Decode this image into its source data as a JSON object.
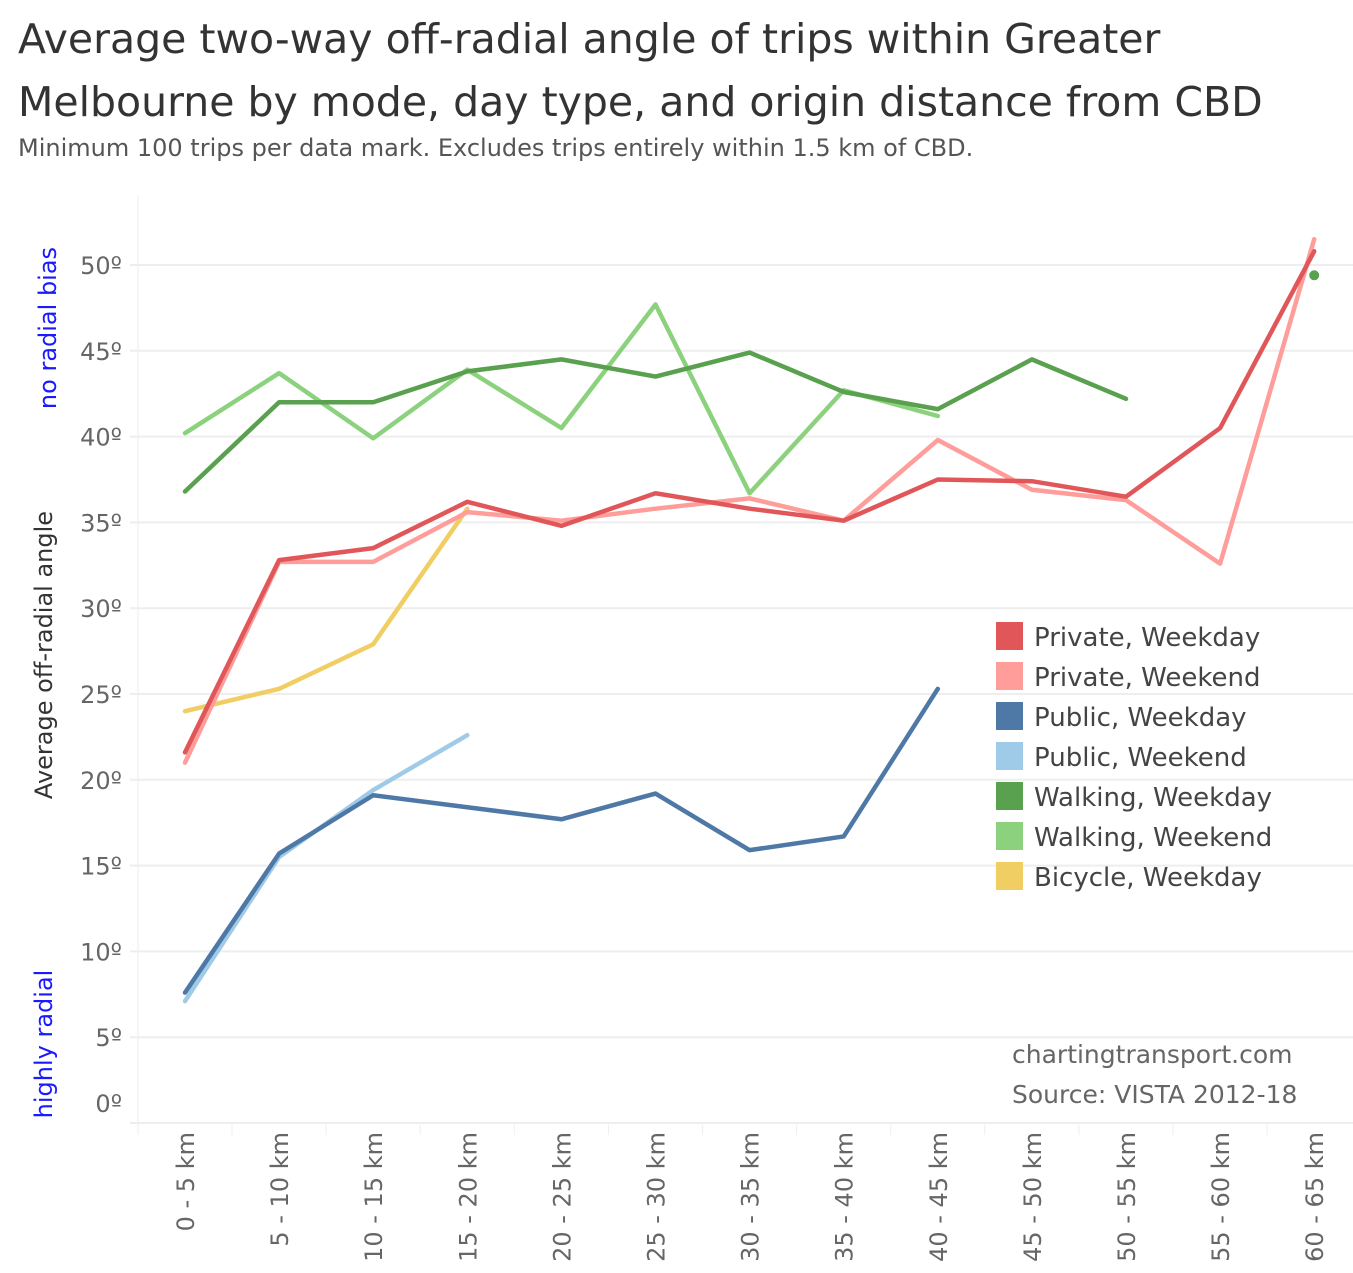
{
  "chart_data": {
    "type": "line",
    "title": "Average two-way off-radial angle of trips within Greater Melbourne by mode, day type, and origin distance from CBD",
    "subtitle": "Minimum 100 trips per data mark. Excludes trips entirely within 1.5 km of CBD.",
    "ylabel": "Average off-radial angle",
    "xlabel": "",
    "ylim": [
      0,
      52
    ],
    "yticks": [
      "0º",
      "5º",
      "10º",
      "15º",
      "20º",
      "25º",
      "30º",
      "35º",
      "40º",
      "45º",
      "50º"
    ],
    "y_annotations": {
      "top": "no radial bias",
      "bottom": "highly radial"
    },
    "grid": true,
    "legend_position": "right",
    "categories": [
      "0 - 5 km",
      "5 - 10 km",
      "10 - 15 km",
      "15 - 20 km",
      "20 - 25 km",
      "25 - 30 km",
      "30 - 35 km",
      "35 - 40 km",
      "40 - 45 km",
      "45 - 50 km",
      "50 - 55 km",
      "55 - 60 km",
      "60 - 65 km"
    ],
    "series": [
      {
        "name": "Private, Weekday",
        "color": "#e15759",
        "values": [
          21.6,
          32.8,
          33.5,
          36.2,
          34.8,
          36.7,
          35.8,
          35.1,
          37.5,
          37.4,
          36.5,
          40.5,
          50.8
        ]
      },
      {
        "name": "Private, Weekend",
        "color": "#ff9d9a",
        "values": [
          21.0,
          32.7,
          32.7,
          35.6,
          35.1,
          35.8,
          36.4,
          35.1,
          39.8,
          36.9,
          36.3,
          32.6,
          51.5
        ]
      },
      {
        "name": "Public, Weekday",
        "color": "#4e79a7",
        "values": [
          7.6,
          15.7,
          19.1,
          18.4,
          17.7,
          19.2,
          15.9,
          16.7,
          25.3,
          null,
          null,
          null,
          null
        ]
      },
      {
        "name": "Public, Weekend",
        "color": "#a0cbe8",
        "values": [
          7.1,
          15.5,
          19.4,
          22.6,
          null,
          null,
          null,
          null,
          null,
          null,
          null,
          null,
          null
        ]
      },
      {
        "name": "Walking, Weekday",
        "color": "#59a14f",
        "values": [
          36.8,
          42.0,
          42.0,
          43.8,
          44.5,
          43.5,
          44.9,
          42.6,
          41.6,
          44.5,
          42.2,
          null,
          49.4
        ]
      },
      {
        "name": "Walking, Weekend",
        "color": "#8cd17d",
        "values": [
          40.2,
          43.7,
          39.9,
          43.9,
          40.5,
          47.7,
          36.7,
          42.7,
          41.2,
          null,
          null,
          null,
          null
        ]
      },
      {
        "name": "Bicycle, Weekday",
        "color": "#f1ce63",
        "values": [
          24.0,
          25.3,
          27.9,
          35.8,
          null,
          null,
          null,
          null,
          null,
          null,
          null,
          null,
          null
        ]
      }
    ],
    "annotations": [
      "chartingtransport.com",
      "Source: VISTA 2012-18"
    ]
  }
}
